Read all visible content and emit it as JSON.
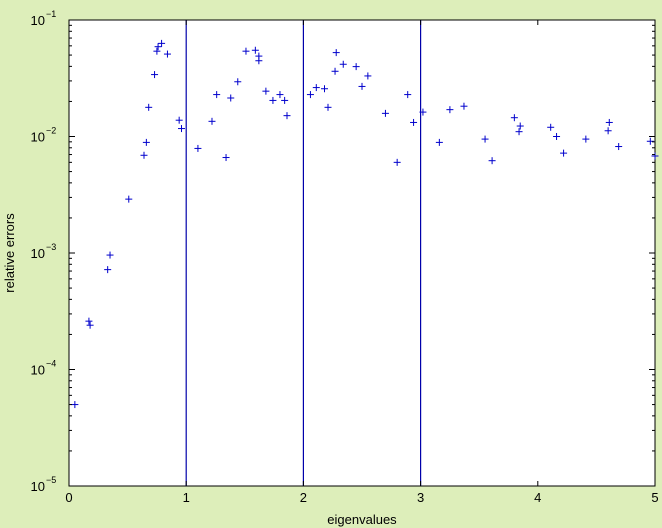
{
  "chart_data": {
    "type": "scatter",
    "title": "",
    "xlabel": "eigenvalues",
    "ylabel": "relative errors",
    "xlim": [
      0,
      5
    ],
    "ylim": [
      1e-05,
      0.1
    ],
    "yscale": "log",
    "grid": false,
    "marker": "+",
    "colors": {
      "marker": "#0000cc",
      "vline": "#0000aa",
      "background": "#ddeeba",
      "plot_area": "#ffffff",
      "axis": "#000000"
    },
    "x_ticks": [
      {
        "value": 0,
        "label": "0"
      },
      {
        "value": 1,
        "label": "1"
      },
      {
        "value": 2,
        "label": "2"
      },
      {
        "value": 3,
        "label": "3"
      },
      {
        "value": 4,
        "label": "4"
      },
      {
        "value": 5,
        "label": "5"
      }
    ],
    "y_ticks": [
      {
        "value": 1e-05,
        "base": "10",
        "exp": "−5"
      },
      {
        "value": 0.0001,
        "base": "10",
        "exp": "−4"
      },
      {
        "value": 0.001,
        "base": "10",
        "exp": "−3"
      },
      {
        "value": 0.01,
        "base": "10",
        "exp": "−2"
      },
      {
        "value": 0.1,
        "base": "10",
        "exp": "−1"
      }
    ],
    "vertical_lines": [
      1,
      2,
      3
    ],
    "points": [
      [
        0.05,
        5e-05
      ],
      [
        0.17,
        0.00026
      ],
      [
        0.18,
        0.00024
      ],
      [
        0.33,
        0.00072
      ],
      [
        0.35,
        0.00096
      ],
      [
        0.51,
        0.0029
      ],
      [
        0.64,
        0.0069
      ],
      [
        0.66,
        0.0089
      ],
      [
        0.68,
        0.0178
      ],
      [
        0.73,
        0.034
      ],
      [
        0.75,
        0.054
      ],
      [
        0.76,
        0.059
      ],
      [
        0.79,
        0.063
      ],
      [
        0.84,
        0.051
      ],
      [
        0.94,
        0.0138
      ],
      [
        0.96,
        0.0117
      ],
      [
        1.1,
        0.0079
      ],
      [
        1.22,
        0.0135
      ],
      [
        1.26,
        0.0229
      ],
      [
        1.34,
        0.0066
      ],
      [
        1.38,
        0.0214
      ],
      [
        1.44,
        0.0295
      ],
      [
        1.51,
        0.054
      ],
      [
        1.59,
        0.055
      ],
      [
        1.62,
        0.049
      ],
      [
        1.62,
        0.0447
      ],
      [
        1.68,
        0.0245
      ],
      [
        1.74,
        0.0204
      ],
      [
        1.8,
        0.0229
      ],
      [
        1.84,
        0.0204
      ],
      [
        1.86,
        0.0151
      ],
      [
        2.06,
        0.0229
      ],
      [
        2.11,
        0.0263
      ],
      [
        2.18,
        0.0257
      ],
      [
        2.21,
        0.0178
      ],
      [
        2.27,
        0.0363
      ],
      [
        2.28,
        0.0525
      ],
      [
        2.34,
        0.0417
      ],
      [
        2.45,
        0.0398
      ],
      [
        2.5,
        0.0269
      ],
      [
        2.55,
        0.0331
      ],
      [
        2.7,
        0.0158
      ],
      [
        2.8,
        0.006
      ],
      [
        2.89,
        0.0229
      ],
      [
        2.94,
        0.0132
      ],
      [
        3.02,
        0.0162
      ],
      [
        3.16,
        0.0089
      ],
      [
        3.25,
        0.017
      ],
      [
        3.37,
        0.0182
      ],
      [
        3.55,
        0.0095
      ],
      [
        3.61,
        0.0062
      ],
      [
        3.8,
        0.0145
      ],
      [
        3.84,
        0.011
      ],
      [
        3.85,
        0.0123
      ],
      [
        4.11,
        0.012
      ],
      [
        4.16,
        0.01
      ],
      [
        4.22,
        0.0072
      ],
      [
        4.41,
        0.0095
      ],
      [
        4.6,
        0.0112
      ],
      [
        4.61,
        0.0132
      ],
      [
        4.69,
        0.0082
      ],
      [
        4.96,
        0.0091
      ],
      [
        5.0,
        0.0068
      ]
    ]
  }
}
